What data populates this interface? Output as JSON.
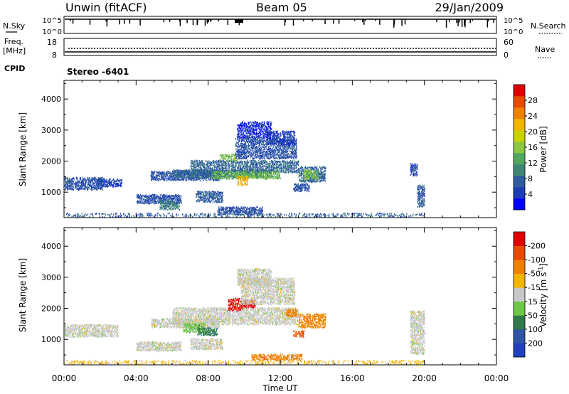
{
  "header": {
    "station": "Unwin (fitACF)",
    "beam": "Beam 05",
    "date": "29/Jan/2009"
  },
  "top_panels": {
    "nsky": {
      "label": "N.Sky",
      "ticks": [
        "10^5",
        "10^0"
      ]
    },
    "nsearch": {
      "label": "N.Search",
      "ticks": [
        "10^5",
        "10^0"
      ]
    },
    "freq": {
      "label_line1": "Freq.",
      "label_line2": "[MHz]",
      "ticks": [
        "18",
        "8"
      ]
    },
    "nave": {
      "label": "Nave",
      "ticks": [
        "60",
        "0"
      ]
    },
    "cpid": {
      "label": "CPID",
      "text": "Stereo -6401"
    }
  },
  "chart_data": [
    {
      "type": "heatmap",
      "name": "power",
      "ylabel": "Slant Range [km]",
      "ylim": [
        180,
        4600
      ],
      "yticks": [
        1000,
        2000,
        3000,
        4000
      ],
      "xlim": [
        0,
        24
      ],
      "xticks": [
        0,
        4,
        8,
        12,
        16,
        20,
        24
      ],
      "colorbar": {
        "title": "Power [dB]",
        "range": [
          0,
          32
        ],
        "ticks": [
          4,
          8,
          12,
          16,
          20,
          24,
          28
        ],
        "colors": [
          "#0000ff",
          "#1c3eb4",
          "#2f5ba0",
          "#3e8775",
          "#4fa85e",
          "#8cc63f",
          "#c8d400",
          "#f4b400",
          "#f08000",
          "#e84a00",
          "#e00000"
        ]
      },
      "regions": [
        {
          "t0": 0.0,
          "t1": 2.2,
          "r0": 1050,
          "r1": 1450,
          "level": 6
        },
        {
          "t0": 1.8,
          "t1": 3.2,
          "r0": 1150,
          "r1": 1400,
          "level": 5
        },
        {
          "t0": 4.8,
          "t1": 8.6,
          "r0": 1350,
          "r1": 1650,
          "level": 6
        },
        {
          "t0": 6.0,
          "t1": 11.5,
          "r0": 1450,
          "r1": 1700,
          "level": 8
        },
        {
          "t0": 7.0,
          "t1": 13.0,
          "r0": 1600,
          "r1": 2000,
          "level": 8
        },
        {
          "t0": 8.2,
          "t1": 12.0,
          "r0": 1400,
          "r1": 1650,
          "level": 14
        },
        {
          "t0": 9.6,
          "t1": 10.2,
          "r0": 1200,
          "r1": 1500,
          "level": 22
        },
        {
          "t0": 8.6,
          "t1": 9.6,
          "r0": 2000,
          "r1": 2200,
          "level": 15
        },
        {
          "t0": 9.5,
          "t1": 12.9,
          "r0": 2050,
          "r1": 2700,
          "level": 6
        },
        {
          "t0": 11.2,
          "t1": 12.8,
          "r0": 2500,
          "r1": 2950,
          "level": 5
        },
        {
          "t0": 13.0,
          "t1": 14.5,
          "r0": 1300,
          "r1": 1800,
          "level": 8
        },
        {
          "t0": 13.3,
          "t1": 14.1,
          "r0": 1400,
          "r1": 1700,
          "level": 15
        },
        {
          "t0": 12.7,
          "t1": 13.6,
          "r0": 1000,
          "r1": 1250,
          "level": 6
        },
        {
          "t0": 4.0,
          "t1": 6.5,
          "r0": 600,
          "r1": 900,
          "level": 6
        },
        {
          "t0": 5.3,
          "t1": 6.4,
          "r0": 400,
          "r1": 700,
          "level": 10
        },
        {
          "t0": 7.3,
          "t1": 8.8,
          "r0": 650,
          "r1": 1000,
          "level": 7
        },
        {
          "t0": 8.5,
          "t1": 11.0,
          "r0": 250,
          "r1": 500,
          "level": 6
        },
        {
          "t0": 9.6,
          "t1": 11.5,
          "r0": 2700,
          "r1": 3250,
          "level": 4
        },
        {
          "t0": 19.6,
          "t1": 20.0,
          "r0": 500,
          "r1": 1200,
          "level": 7
        },
        {
          "t0": 19.2,
          "t1": 19.6,
          "r0": 1500,
          "r1": 1900,
          "level": 5
        },
        {
          "t0": 0.0,
          "t1": 20.0,
          "r0": 180,
          "r1": 300,
          "level": 7
        }
      ]
    },
    {
      "type": "heatmap",
      "name": "velocity",
      "ylabel": "Slant Range [km]",
      "ylim": [
        180,
        4600
      ],
      "yticks": [
        1000,
        2000,
        3000,
        4000
      ],
      "xlim": [
        0,
        24
      ],
      "xticks": [
        0,
        4,
        8,
        12,
        16,
        20,
        24
      ],
      "xtick_labels": [
        "00:00",
        "04:00",
        "08:00",
        "12:00",
        "16:00",
        "20:00",
        "00:00"
      ],
      "xlabel": "Time UT",
      "colorbar": {
        "title": "Velocity [m s",
        "title_sup": "-1",
        "title_end": "]",
        "tick_labels": [
          "200",
          "100",
          "50",
          "15",
          "-15",
          "-50",
          "-100",
          "-200"
        ],
        "colors": [
          "#2040c0",
          "#2f55a8",
          "#2f7a4a",
          "#6cc845",
          "#c8c8c8",
          "#f4b400",
          "#f08000",
          "#e84a00",
          "#e00000"
        ]
      },
      "regions": [
        {
          "t0": 0.0,
          "t1": 3.0,
          "r0": 1050,
          "r1": 1450,
          "color": 4
        },
        {
          "t0": 4.8,
          "t1": 8.6,
          "r0": 1350,
          "r1": 1650,
          "color": 4
        },
        {
          "t0": 6.0,
          "t1": 13.0,
          "r0": 1450,
          "r1": 2000,
          "color": 4
        },
        {
          "t0": 6.6,
          "t1": 7.8,
          "r0": 1200,
          "r1": 1500,
          "color": 3
        },
        {
          "t0": 7.4,
          "t1": 8.5,
          "r0": 1100,
          "r1": 1350,
          "color": 2
        },
        {
          "t0": 9.1,
          "t1": 9.9,
          "r0": 1900,
          "r1": 2300,
          "color": 8
        },
        {
          "t0": 9.9,
          "t1": 10.6,
          "r0": 2000,
          "r1": 2250,
          "color": 8
        },
        {
          "t0": 9.8,
          "t1": 12.8,
          "r0": 2100,
          "r1": 2950,
          "color": 4
        },
        {
          "t0": 12.3,
          "t1": 12.9,
          "r0": 1700,
          "r1": 1950,
          "color": 6
        },
        {
          "t0": 13.0,
          "t1": 14.5,
          "r0": 1350,
          "r1": 1800,
          "color": 6
        },
        {
          "t0": 12.7,
          "t1": 13.3,
          "r0": 1050,
          "r1": 1250,
          "color": 7
        },
        {
          "t0": 4.0,
          "t1": 6.5,
          "r0": 600,
          "r1": 900,
          "color": 4
        },
        {
          "t0": 7.0,
          "t1": 8.8,
          "r0": 650,
          "r1": 1000,
          "color": 4
        },
        {
          "t0": 10.4,
          "t1": 13.2,
          "r0": 300,
          "r1": 500,
          "color": 6
        },
        {
          "t0": 9.6,
          "t1": 11.5,
          "r0": 2700,
          "r1": 3250,
          "color": 4
        },
        {
          "t0": 19.2,
          "t1": 20.0,
          "r0": 500,
          "r1": 1900,
          "color": 4
        },
        {
          "t0": 0.0,
          "t1": 20.0,
          "r0": 180,
          "r1": 300,
          "color": 5
        }
      ]
    }
  ]
}
